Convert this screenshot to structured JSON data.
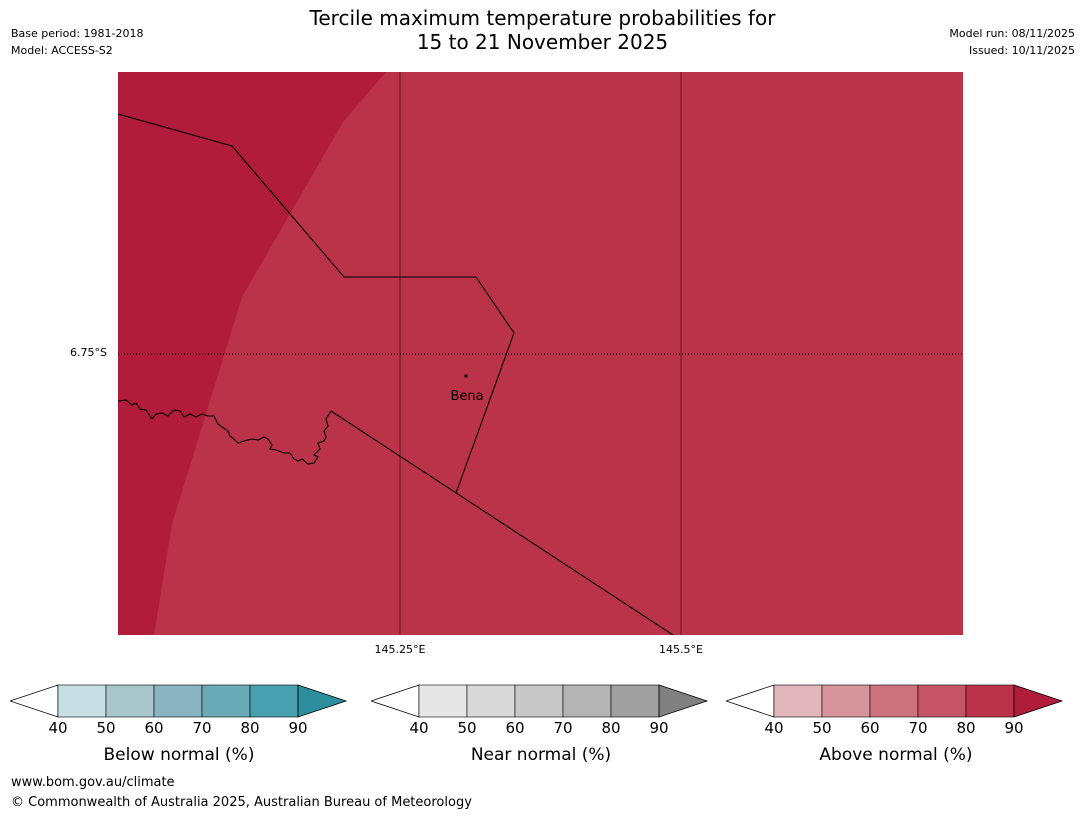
{
  "title": {
    "line1": "Tercile maximum temperature probabilities for",
    "line2": "15 to 21 November 2025"
  },
  "meta_left": {
    "base_period": "Base period: 1981-2018",
    "model": "Model: ACCESS-S2"
  },
  "meta_right": {
    "model_run": "Model run: 08/11/2025",
    "issued": "Issued: 10/11/2025"
  },
  "map": {
    "place_label": "Bena",
    "lat_label": "6.75°S",
    "lon_labels": [
      "145.25°E",
      "145.5°E"
    ],
    "colors": {
      "above_80_90": "#bb3349",
      "above_90_plus": "#b01c39"
    }
  },
  "colorbars": [
    {
      "title": "Below normal (%)",
      "ticks": [
        "40",
        "50",
        "60",
        "70",
        "80",
        "90"
      ],
      "colors": [
        "#ffffff",
        "#c8e0e5",
        "#a9c6cb",
        "#89b4c1",
        "#6aaab7",
        "#489fad",
        "#2d8e9e"
      ]
    },
    {
      "title": "Near normal (%)",
      "ticks": [
        "40",
        "50",
        "60",
        "70",
        "80",
        "90"
      ],
      "colors": [
        "#ffffff",
        "#e6e6e6",
        "#d8d8d8",
        "#c8c8c8",
        "#b4b4b4",
        "#a0a0a0",
        "#808080"
      ]
    },
    {
      "title": "Above normal (%)",
      "ticks": [
        "40",
        "50",
        "60",
        "70",
        "80",
        "90"
      ],
      "colors": [
        "#ffffff",
        "#e2b7bc",
        "#d6949d",
        "#cc737e",
        "#c55566",
        "#bb3349",
        "#b01c39"
      ]
    }
  ],
  "footer": {
    "url": "www.bom.gov.au/climate",
    "copyright": "© Commonwealth of Australia 2025, Australian Bureau of Meteorology"
  }
}
